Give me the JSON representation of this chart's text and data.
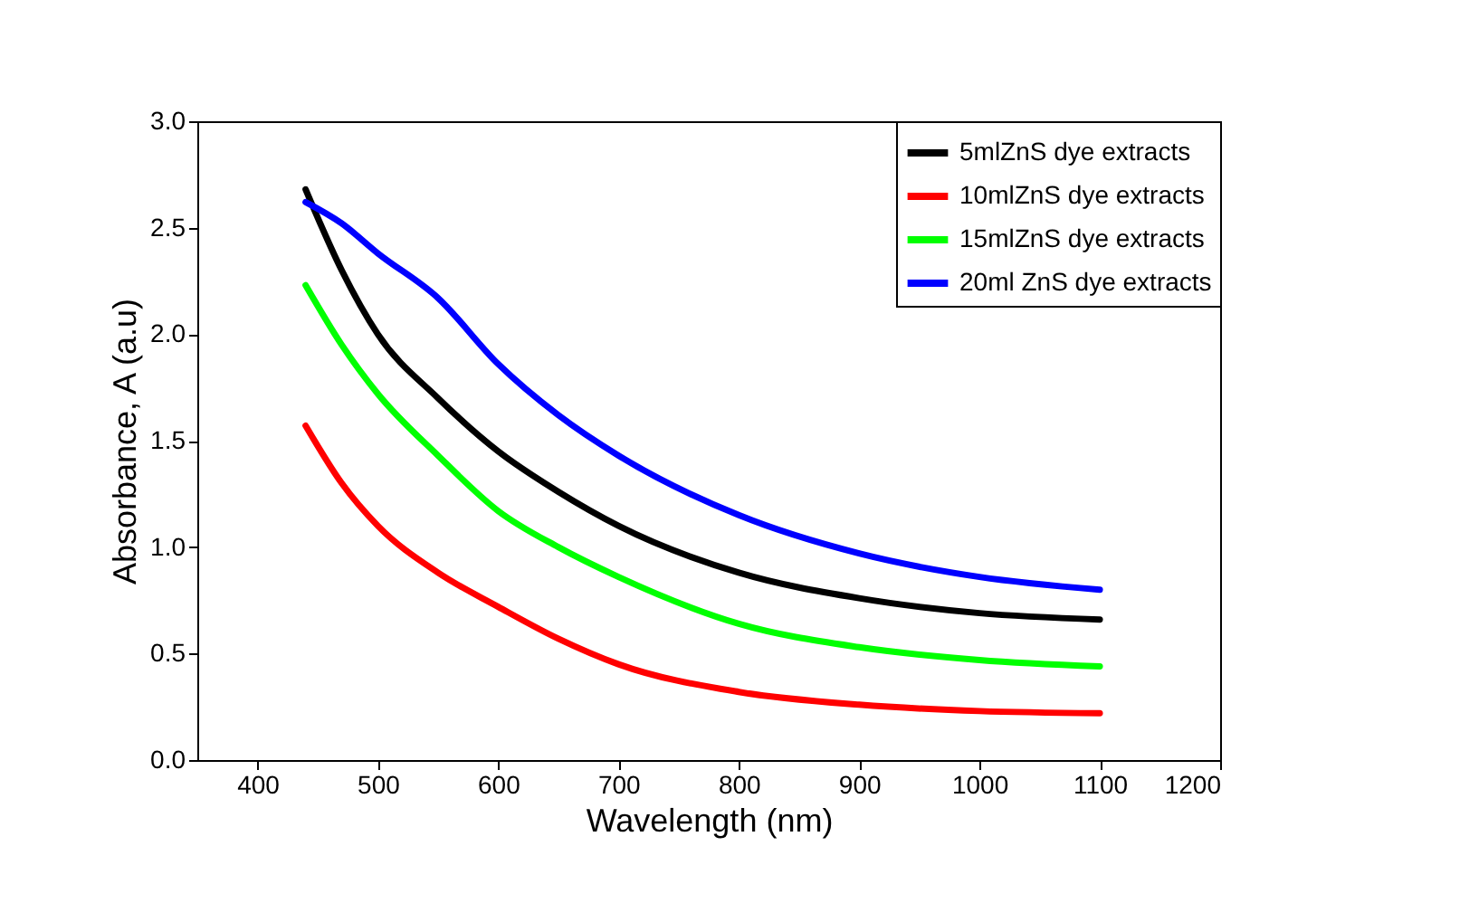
{
  "chart_data": {
    "type": "line",
    "xlabel": "Wavelength (nm)",
    "ylabel": "Absorbance, A (a.u)",
    "xlim": [
      350,
      1200
    ],
    "xticks": [
      400,
      500,
      600,
      700,
      800,
      900,
      1000,
      1100,
      1200
    ],
    "ylim": [
      0,
      3.0
    ],
    "yticks": [
      {
        "value": 0,
        "label": "0.0"
      },
      {
        "value": 0.5,
        "label": "0.5"
      },
      {
        "value": 1,
        "label": "1.0"
      },
      {
        "value": 1.5,
        "label": "1.5"
      },
      {
        "value": 2,
        "label": "2.0"
      },
      {
        "value": 2.5,
        "label": "2.5"
      },
      {
        "value": 3,
        "label": "3.0"
      }
    ],
    "grid": false,
    "legend": "top right",
    "marker": "none",
    "line_style": "solid",
    "x": [
      440,
      470,
      500,
      550,
      600,
      650,
      700,
      800,
      900,
      1000,
      1100
    ],
    "series": [
      {
        "name": "5mlZnS dye extracts",
        "color": "#000000",
        "values": [
          2.68,
          2.3,
          2.0,
          1.7,
          1.45,
          1.26,
          1.1,
          0.88,
          0.76,
          0.69,
          0.66
        ]
      },
      {
        "name": "10mlZnS dye extracts",
        "color": "#ff0000",
        "values": [
          1.57,
          1.3,
          1.1,
          0.88,
          0.72,
          0.57,
          0.45,
          0.32,
          0.26,
          0.23,
          0.22
        ]
      },
      {
        "name": "15mlZnS dye extracts",
        "color": "#00ff00",
        "values": [
          2.23,
          1.95,
          1.72,
          1.43,
          1.17,
          1.0,
          0.86,
          0.64,
          0.53,
          0.47,
          0.44
        ]
      },
      {
        "name": "20ml ZnS dye extracts",
        "color": "#0000ff",
        "values": [
          2.62,
          2.52,
          2.38,
          2.17,
          1.86,
          1.62,
          1.43,
          1.15,
          0.97,
          0.86,
          0.8
        ]
      }
    ]
  }
}
